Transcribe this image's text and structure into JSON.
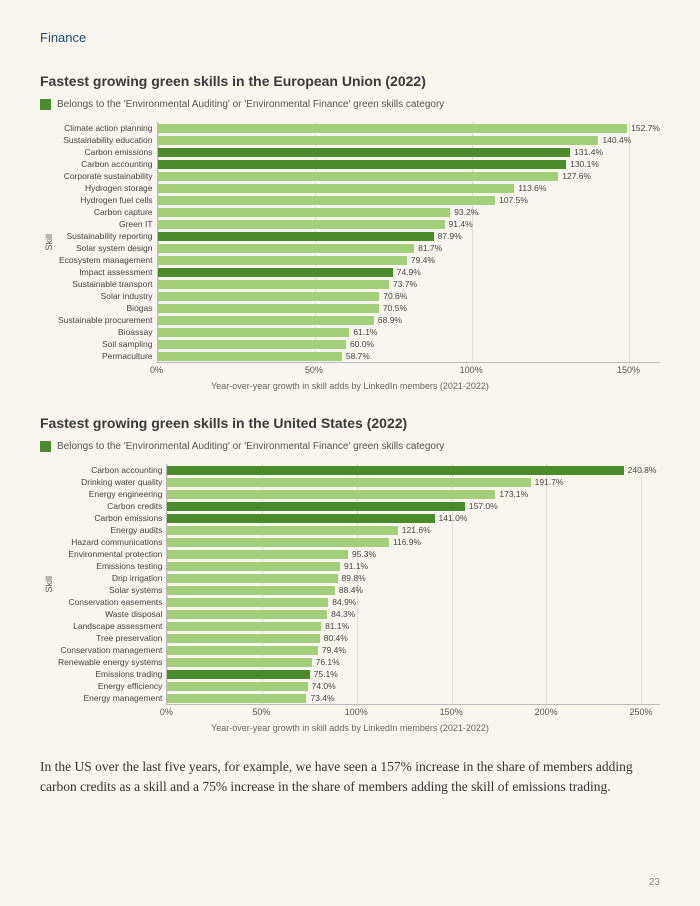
{
  "section_label": "Finance",
  "page_number": "23",
  "body_paragraph": "In the US over the last five years, for example, we have seen a 157% increase in the share of members adding carbon credits as a skill and a 75% increase in the share of members adding the skill of emissions trading.",
  "colors": {
    "normal_bar": "#a3cf7a",
    "highlight_bar": "#4a8b2c",
    "grid": "#dddddd",
    "axis": "#bbbbbb",
    "background": "#f9f5ef"
  },
  "legend_text": "Belongs to the 'Environmental Auditing' or 'Environmental Finance' green skills category",
  "chart1": {
    "title": "Fastest growing green skills in the European Union (2022)",
    "y_axis_title": "Skill",
    "x_axis_title": "Year-over-year growth in skill adds by LinkedIn members (2021-2022)",
    "xmax": 160,
    "ticks": [
      0,
      50,
      100,
      150
    ],
    "tick_labels": [
      "0%",
      "50%",
      "100%",
      "150%"
    ],
    "rows": [
      {
        "label": "Climate action planning",
        "value": 152.7,
        "hl": false
      },
      {
        "label": "Sustainability education",
        "value": 140.4,
        "hl": false
      },
      {
        "label": "Carbon emissions",
        "value": 131.4,
        "hl": true
      },
      {
        "label": "Carbon accounting",
        "value": 130.1,
        "hl": true
      },
      {
        "label": "Corporate sustainability",
        "value": 127.6,
        "hl": false
      },
      {
        "label": "Hydrogen storage",
        "value": 113.6,
        "hl": false
      },
      {
        "label": "Hydrogen fuel cells",
        "value": 107.5,
        "hl": false
      },
      {
        "label": "Carbon capture",
        "value": 93.2,
        "hl": false
      },
      {
        "label": "Green IT",
        "value": 91.4,
        "hl": false
      },
      {
        "label": "Sustainability reporting",
        "value": 87.9,
        "hl": true
      },
      {
        "label": "Solar system design",
        "value": 81.7,
        "hl": false
      },
      {
        "label": "Ecosystem management",
        "value": 79.4,
        "hl": false
      },
      {
        "label": "Impact assessment",
        "value": 74.9,
        "hl": true
      },
      {
        "label": "Sustainable transport",
        "value": 73.7,
        "hl": false
      },
      {
        "label": "Solar industry",
        "value": 70.6,
        "hl": false
      },
      {
        "label": "Biogas",
        "value": 70.5,
        "hl": false
      },
      {
        "label": "Sustainable procurement",
        "value": 68.9,
        "hl": false
      },
      {
        "label": "Bioassay",
        "value": 61.1,
        "hl": false
      },
      {
        "label": "Soil sampling",
        "value": 60.0,
        "hl": false
      },
      {
        "label": "Permaculture",
        "value": 58.7,
        "hl": false
      }
    ]
  },
  "chart2": {
    "title": "Fastest growing green skills in the United States (2022)",
    "y_axis_title": "Skill",
    "x_axis_title": "Year-over-year growth in skill adds by LinkedIn members (2021-2022)",
    "xmax": 260,
    "ticks": [
      0,
      50,
      100,
      150,
      200,
      250
    ],
    "tick_labels": [
      "0%",
      "50%",
      "100%",
      "150%",
      "200%",
      "250%"
    ],
    "rows": [
      {
        "label": "Carbon accounting",
        "value": 240.8,
        "hl": true
      },
      {
        "label": "Drinking water quality",
        "value": 191.7,
        "hl": false
      },
      {
        "label": "Energy engineering",
        "value": 173.1,
        "hl": false
      },
      {
        "label": "Carbon credits",
        "value": 157.0,
        "hl": true
      },
      {
        "label": "Carbon emissions",
        "value": 141.0,
        "hl": true
      },
      {
        "label": "Energy audits",
        "value": 121.6,
        "hl": false
      },
      {
        "label": "Hazard communications",
        "value": 116.9,
        "hl": false
      },
      {
        "label": "Environmental protection",
        "value": 95.3,
        "hl": false
      },
      {
        "label": "Emissions testing",
        "value": 91.1,
        "hl": false
      },
      {
        "label": "Drip irrigation",
        "value": 89.8,
        "hl": false
      },
      {
        "label": "Solar systems",
        "value": 88.4,
        "hl": false
      },
      {
        "label": "Conservation easements",
        "value": 84.9,
        "hl": false
      },
      {
        "label": "Waste disposal",
        "value": 84.3,
        "hl": false
      },
      {
        "label": "Landscape assessment",
        "value": 81.1,
        "hl": false
      },
      {
        "label": "Tree preservation",
        "value": 80.4,
        "hl": false
      },
      {
        "label": "Conservation management",
        "value": 79.4,
        "hl": false
      },
      {
        "label": "Renewable energy systems",
        "value": 76.1,
        "hl": false
      },
      {
        "label": "Emissions trading",
        "value": 75.1,
        "hl": true
      },
      {
        "label": "Energy efficiency",
        "value": 74.0,
        "hl": false
      },
      {
        "label": "Energy management",
        "value": 73.4,
        "hl": false
      }
    ]
  }
}
